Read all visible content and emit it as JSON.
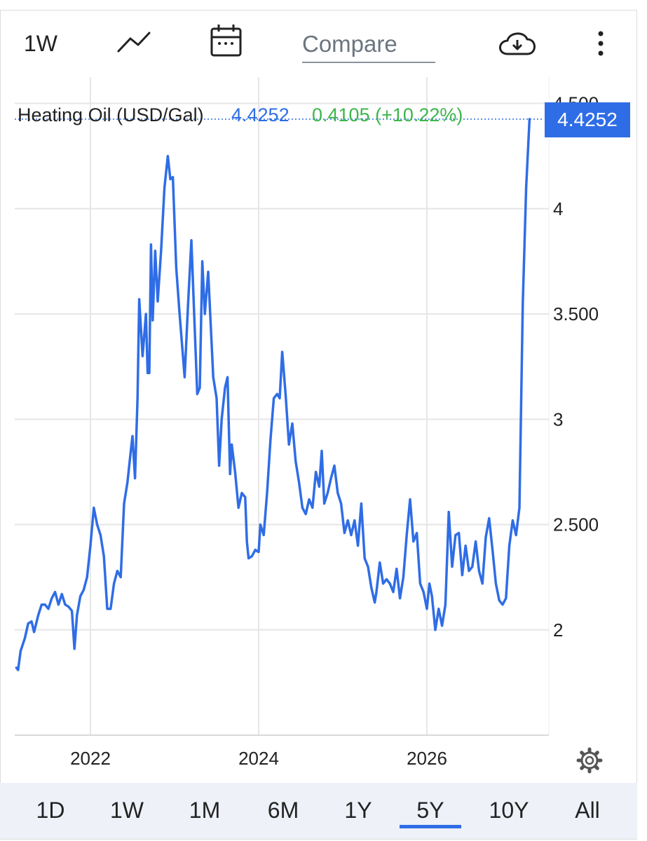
{
  "toolbar": {
    "interval_label": "1W",
    "chart_type_icon": "line-chart-icon",
    "calendar_icon": "calendar-icon",
    "compare_placeholder": "Compare",
    "download_icon": "cloud-download-icon",
    "more_icon": "more-vertical-icon"
  },
  "legend": {
    "name": "Heating Oil (USD/Gal)",
    "price": "4.4252",
    "change": "0.4105 (+10.22%)",
    "price_color": "#2f6de6",
    "change_color": "#3cb64a"
  },
  "last_price_label": "4.4252",
  "settings_icon": "gear-icon",
  "range_buttons": [
    {
      "label": "1D",
      "active": false
    },
    {
      "label": "1W",
      "active": false
    },
    {
      "label": "1M",
      "active": false
    },
    {
      "label": "6M",
      "active": false
    },
    {
      "label": "1Y",
      "active": false
    },
    {
      "label": "5Y",
      "active": true
    },
    {
      "label": "10Y",
      "active": false
    },
    {
      "label": "All",
      "active": false
    }
  ],
  "colors": {
    "line": "#2f6de6",
    "accent": "#2f6de6",
    "grid": "#e6e6e6",
    "range_bar_bg": "#eef1f8"
  },
  "chart_data": {
    "type": "line",
    "series": [
      {
        "values": [
          [
            2021.12,
            1.82
          ],
          [
            2021.14,
            1.81
          ],
          [
            2021.17,
            1.9
          ],
          [
            2021.22,
            1.96
          ],
          [
            2021.26,
            2.03
          ],
          [
            2021.3,
            2.04
          ],
          [
            2021.33,
            1.99
          ],
          [
            2021.38,
            2.07
          ],
          [
            2021.42,
            2.12
          ],
          [
            2021.46,
            2.12
          ],
          [
            2021.5,
            2.1
          ],
          [
            2021.54,
            2.15
          ],
          [
            2021.58,
            2.18
          ],
          [
            2021.62,
            2.12
          ],
          [
            2021.66,
            2.17
          ],
          [
            2021.7,
            2.12
          ],
          [
            2021.74,
            2.11
          ],
          [
            2021.78,
            2.09
          ],
          [
            2021.81,
            1.91
          ],
          [
            2021.84,
            2.07
          ],
          [
            2021.88,
            2.16
          ],
          [
            2021.92,
            2.19
          ],
          [
            2021.96,
            2.25
          ],
          [
            2022.0,
            2.4
          ],
          [
            2022.04,
            2.58
          ],
          [
            2022.08,
            2.5
          ],
          [
            2022.12,
            2.45
          ],
          [
            2022.16,
            2.35
          ],
          [
            2022.2,
            2.1
          ],
          [
            2022.24,
            2.1
          ],
          [
            2022.28,
            2.22
          ],
          [
            2022.32,
            2.28
          ],
          [
            2022.36,
            2.25
          ],
          [
            2022.4,
            2.6
          ],
          [
            2022.44,
            2.7
          ],
          [
            2022.48,
            2.85
          ],
          [
            2022.5,
            2.92
          ],
          [
            2022.53,
            2.72
          ],
          [
            2022.56,
            3.1
          ],
          [
            2022.58,
            3.57
          ],
          [
            2022.62,
            3.3
          ],
          [
            2022.64,
            3.4
          ],
          [
            2022.66,
            3.5
          ],
          [
            2022.68,
            3.22
          ],
          [
            2022.7,
            3.22
          ],
          [
            2022.72,
            3.83
          ],
          [
            2022.74,
            3.47
          ],
          [
            2022.77,
            3.8
          ],
          [
            2022.8,
            3.56
          ],
          [
            2022.84,
            3.8
          ],
          [
            2022.88,
            4.1
          ],
          [
            2022.92,
            4.25
          ],
          [
            2022.95,
            4.14
          ],
          [
            2022.98,
            4.15
          ],
          [
            2023.02,
            3.72
          ],
          [
            2023.06,
            3.5
          ],
          [
            2023.09,
            3.35
          ],
          [
            2023.12,
            3.2
          ],
          [
            2023.16,
            3.54
          ],
          [
            2023.2,
            3.85
          ],
          [
            2023.24,
            3.43
          ],
          [
            2023.27,
            3.12
          ],
          [
            2023.3,
            3.15
          ],
          [
            2023.33,
            3.75
          ],
          [
            2023.36,
            3.5
          ],
          [
            2023.4,
            3.7
          ],
          [
            2023.43,
            3.45
          ],
          [
            2023.46,
            3.2
          ],
          [
            2023.5,
            3.1
          ],
          [
            2023.53,
            2.78
          ],
          [
            2023.56,
            3.0
          ],
          [
            2023.6,
            3.15
          ],
          [
            2023.63,
            3.2
          ],
          [
            2023.66,
            2.74
          ],
          [
            2023.68,
            2.88
          ],
          [
            2023.72,
            2.75
          ],
          [
            2023.76,
            2.58
          ],
          [
            2023.8,
            2.65
          ],
          [
            2023.84,
            2.63
          ],
          [
            2023.86,
            2.42
          ],
          [
            2023.88,
            2.34
          ],
          [
            2023.92,
            2.35
          ],
          [
            2023.96,
            2.38
          ],
          [
            2024.0,
            2.37
          ],
          [
            2024.02,
            2.5
          ],
          [
            2024.06,
            2.45
          ],
          [
            2024.1,
            2.65
          ],
          [
            2024.14,
            2.9
          ],
          [
            2024.18,
            3.1
          ],
          [
            2024.22,
            3.12
          ],
          [
            2024.25,
            3.1
          ],
          [
            2024.28,
            3.32
          ],
          [
            2024.32,
            3.12
          ],
          [
            2024.36,
            2.88
          ],
          [
            2024.4,
            2.98
          ],
          [
            2024.44,
            2.8
          ],
          [
            2024.48,
            2.7
          ],
          [
            2024.52,
            2.58
          ],
          [
            2024.56,
            2.55
          ],
          [
            2024.6,
            2.62
          ],
          [
            2024.64,
            2.58
          ],
          [
            2024.68,
            2.75
          ],
          [
            2024.72,
            2.68
          ],
          [
            2024.75,
            2.85
          ],
          [
            2024.78,
            2.6
          ],
          [
            2024.82,
            2.65
          ],
          [
            2024.86,
            2.72
          ],
          [
            2024.9,
            2.78
          ],
          [
            2024.94,
            2.65
          ],
          [
            2024.98,
            2.6
          ],
          [
            2025.02,
            2.46
          ],
          [
            2025.06,
            2.52
          ],
          [
            2025.1,
            2.45
          ],
          [
            2025.14,
            2.52
          ],
          [
            2025.18,
            2.4
          ],
          [
            2025.22,
            2.6
          ],
          [
            2025.26,
            2.34
          ],
          [
            2025.3,
            2.3
          ],
          [
            2025.34,
            2.2
          ],
          [
            2025.38,
            2.13
          ],
          [
            2025.4,
            2.18
          ],
          [
            2025.44,
            2.32
          ],
          [
            2025.48,
            2.22
          ],
          [
            2025.52,
            2.24
          ],
          [
            2025.56,
            2.22
          ],
          [
            2025.6,
            2.18
          ],
          [
            2025.64,
            2.29
          ],
          [
            2025.68,
            2.15
          ],
          [
            2025.72,
            2.25
          ],
          [
            2025.76,
            2.45
          ],
          [
            2025.8,
            2.62
          ],
          [
            2025.84,
            2.42
          ],
          [
            2025.88,
            2.46
          ],
          [
            2025.92,
            2.22
          ],
          [
            2025.96,
            2.18
          ],
          [
            2026.0,
            2.1
          ],
          [
            2026.03,
            2.22
          ],
          [
            2026.06,
            2.16
          ],
          [
            2026.1,
            2.0
          ],
          [
            2026.14,
            2.1
          ],
          [
            2026.18,
            2.02
          ],
          [
            2026.22,
            2.12
          ],
          [
            2026.26,
            2.56
          ],
          [
            2026.3,
            2.3
          ],
          [
            2026.34,
            2.45
          ],
          [
            2026.38,
            2.46
          ],
          [
            2026.42,
            2.26
          ],
          [
            2026.46,
            2.4
          ],
          [
            2026.5,
            2.28
          ],
          [
            2026.54,
            2.3
          ],
          [
            2026.58,
            2.42
          ],
          [
            2026.62,
            2.28
          ],
          [
            2026.66,
            2.22
          ],
          [
            2026.7,
            2.44
          ],
          [
            2026.74,
            2.53
          ],
          [
            2026.78,
            2.38
          ],
          [
            2026.82,
            2.22
          ],
          [
            2026.86,
            2.14
          ],
          [
            2026.9,
            2.12
          ],
          [
            2026.94,
            2.15
          ],
          [
            2026.98,
            2.4
          ],
          [
            2027.02,
            2.52
          ],
          [
            2027.06,
            2.45
          ],
          [
            2027.1,
            2.58
          ],
          [
            2027.14,
            3.55
          ],
          [
            2027.18,
            4.1
          ],
          [
            2027.22,
            4.4252
          ]
        ]
      }
    ],
    "x_ticks": [
      2022,
      2024,
      2026
    ],
    "x_tick_labels": [
      "2022",
      "2024",
      "2026"
    ],
    "xlim": [
      2021.1,
      2027.35
    ],
    "y_ticks": [
      2,
      2.5,
      3,
      3.5,
      4,
      4.5
    ],
    "y_tick_labels": [
      "2",
      "2.500",
      "3",
      "3.500",
      "4",
      "4.500"
    ],
    "ylim": [
      1.5,
      4.625
    ],
    "last_value": 4.4252,
    "grid": true,
    "legend_position": "top-left"
  }
}
